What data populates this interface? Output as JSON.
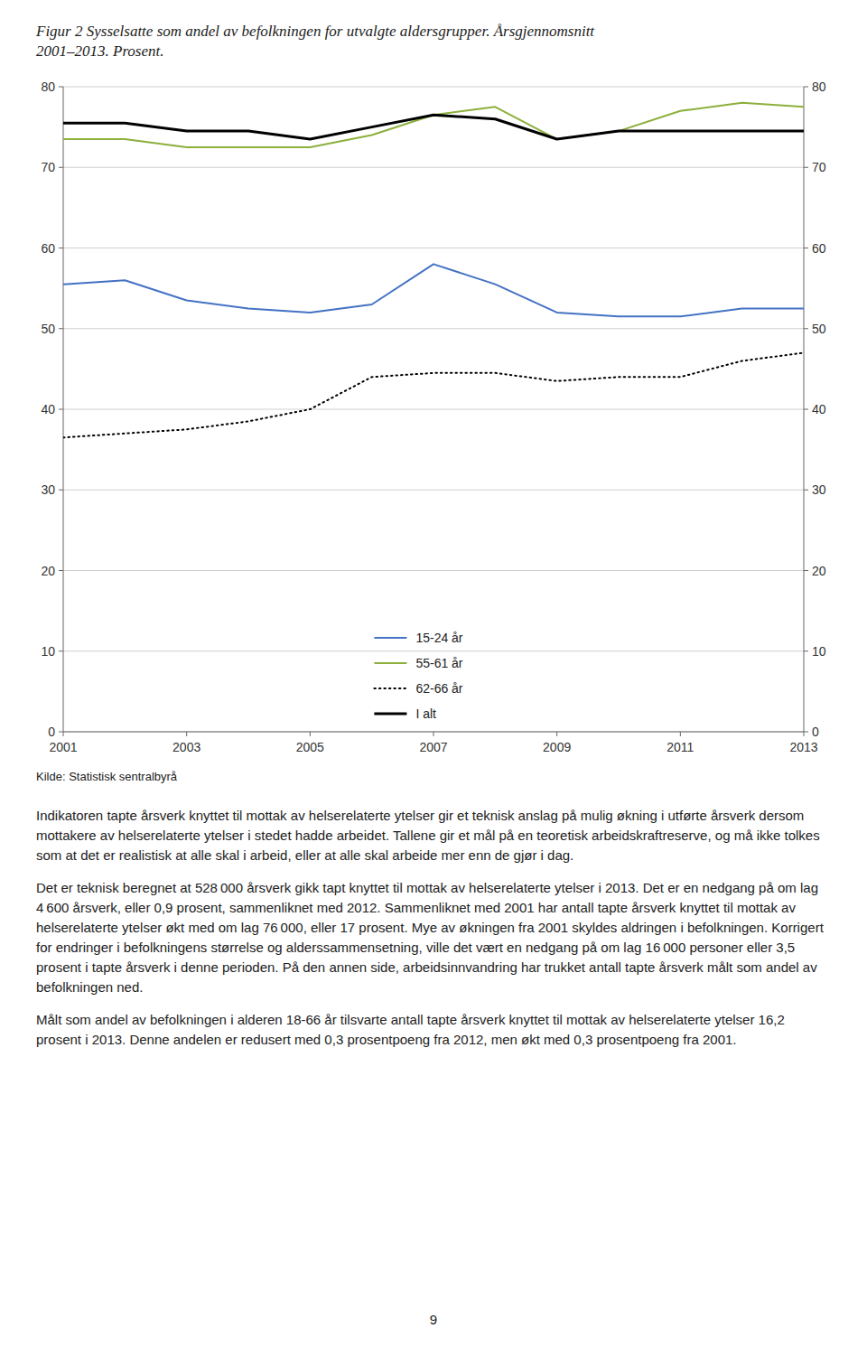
{
  "chart_data": {
    "type": "line",
    "title": "Figur 2 Sysselsatte som andel av befolkningen for utvalgte aldersgrupper. Årsgjennomsnitt",
    "subtitle": "2001–2013. Prosent.",
    "x": [
      2001,
      2002,
      2003,
      2004,
      2005,
      2006,
      2007,
      2008,
      2009,
      2010,
      2011,
      2012,
      2013
    ],
    "series": [
      {
        "name": "15-24 år",
        "color": "#4472C4",
        "line_style": "solid",
        "values": [
          55.5,
          56.0,
          53.5,
          52.5,
          52.0,
          53.0,
          58.0,
          55.5,
          52.0,
          51.5,
          51.5,
          52.5,
          52.5
        ]
      },
      {
        "name": "55-61 år",
        "color": "#8DAF3C",
        "line_style": "solid",
        "values": [
          73.5,
          73.5,
          72.5,
          72.5,
          72.5,
          74.0,
          76.5,
          77.5,
          73.5,
          74.5,
          77.0,
          78.0,
          77.5
        ]
      },
      {
        "name": "62-66 år",
        "color": "#000000",
        "line_style": "dotted",
        "values": [
          36.5,
          37.0,
          37.5,
          38.5,
          40.0,
          44.0,
          44.5,
          44.5,
          43.5,
          44.0,
          44.0,
          46.0,
          47.0
        ]
      },
      {
        "name": "I alt",
        "color": "#000000",
        "line_style": "solid",
        "values": [
          75.5,
          75.5,
          74.5,
          74.5,
          73.5,
          75.0,
          76.5,
          76.0,
          73.5,
          74.5,
          74.5,
          74.5,
          74.5
        ]
      }
    ],
    "xlim": [
      2001,
      2013
    ],
    "xticks": [
      2001,
      2003,
      2005,
      2007,
      2009,
      2011,
      2013
    ],
    "ylim": [
      0,
      80
    ],
    "yticks": [
      0,
      10,
      20,
      30,
      40,
      50,
      60,
      70,
      80
    ],
    "y2lim": [
      0,
      80
    ],
    "y2ticks": [
      0,
      10,
      20,
      30,
      40,
      50,
      60,
      70,
      80
    ],
    "grid": true,
    "legend": "lower center"
  },
  "source": "Kilde: Statistisk sentralbyrå",
  "paragraphs": [
    "Indikatoren tapte årsverk knyttet til mottak av helserelaterte ytelser gir et teknisk anslag på mulig økning i utførte årsverk dersom mottakere av helserelaterte ytelser i stedet hadde arbeidet. Tallene gir et mål på en teoretisk arbeidskraftreserve, og må ikke tolkes som at det er realistisk at alle skal i arbeid, eller at alle skal arbeide mer enn de gjør i dag.",
    "Det er teknisk beregnet at 528 000 årsverk gikk tapt knyttet til mottak av helserelaterte ytelser i 2013. Det er en nedgang på om lag 4 600 årsverk, eller 0,9 prosent, sammenliknet med 2012. Sammenliknet med 2001 har antall tapte årsverk knyttet til mottak av helserelaterte ytelser økt med om lag 76 000, eller 17 prosent. Mye av økningen fra 2001 skyldes aldringen i befolkningen. Korrigert for endringer i befolkningens størrelse og alderssammensetning, ville det vært en nedgang på om lag 16 000 personer eller 3,5 prosent i tapte årsverk i denne perioden. På den annen side, arbeidsinnvandring har trukket antall tapte årsverk målt som andel av befolkningen ned.",
    "Målt som andel av befolkningen i alderen 18-66 år tilsvarte antall tapte årsverk knyttet til mottak av helserelaterte ytelser 16,2 prosent i 2013. Denne andelen er redusert med 0,3 prosentpoeng fra 2012, men økt med 0,3 prosentpoeng fra 2001."
  ],
  "page_number": "9"
}
